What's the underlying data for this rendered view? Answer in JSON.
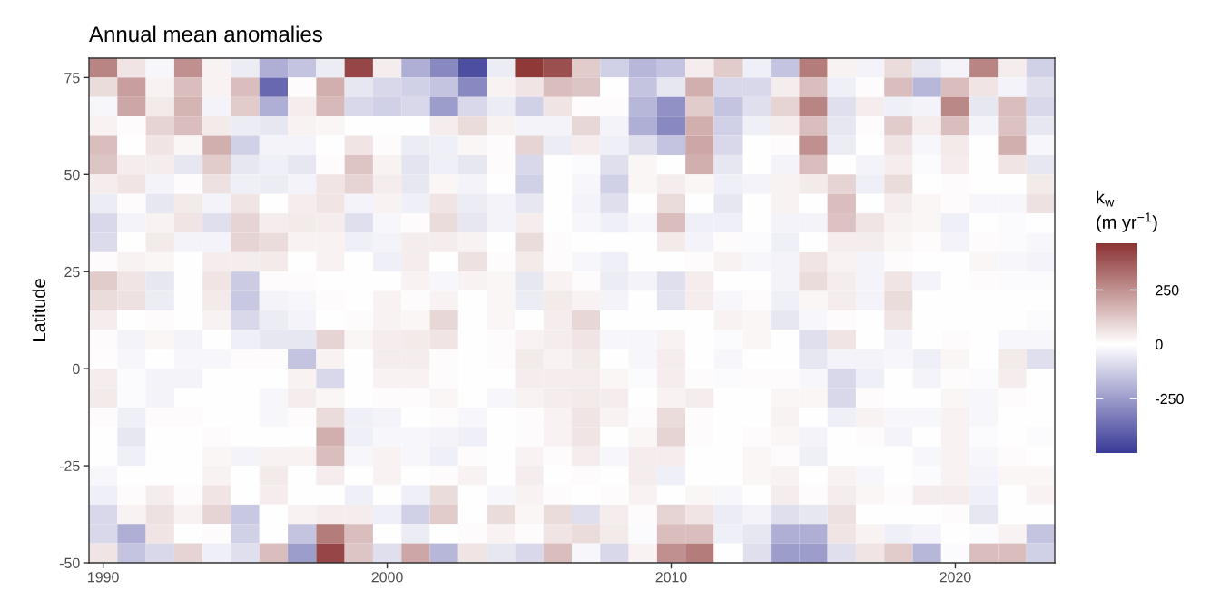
{
  "chart_data": {
    "type": "heatmap",
    "title": "Annual mean anomalies",
    "ylabel": "Latitude",
    "clabel": "k$_{w}$\n(m yr$^{−1}$)",
    "x": [
      1990,
      1991,
      1992,
      1993,
      1994,
      1995,
      1996,
      1997,
      1998,
      1999,
      2000,
      2001,
      2002,
      2003,
      2004,
      2005,
      2006,
      2007,
      2008,
      2009,
      2010,
      2011,
      2012,
      2013,
      2014,
      2015,
      2016,
      2017,
      2018,
      2019,
      2020,
      2021,
      2022,
      2023
    ],
    "y": [
      77.5,
      72.5,
      67.5,
      62.5,
      57.5,
      52.5,
      47.5,
      42.5,
      37.5,
      32.5,
      27.5,
      22.5,
      17.5,
      12.5,
      7.5,
      2.5,
      -2.5,
      -7.5,
      -12.5,
      -17.5,
      -22.5,
      -27.5,
      -32.5,
      -37.5,
      -42.5,
      -47.5
    ],
    "xlim": [
      1989.5,
      2023.5
    ],
    "xticks": [
      1990,
      2000,
      2010,
      2020
    ],
    "ylim": [
      -50,
      80
    ],
    "yticks": [
      -50,
      -25,
      0,
      25,
      50,
      75
    ],
    "clim": [
      -500,
      465
    ],
    "cticks": [
      -250,
      0,
      250
    ],
    "colors": [
      "#3a3a98",
      "#ffffff",
      "#832424"
    ],
    "cells": [
      [
        280,
        60,
        -20,
        250,
        30,
        -50,
        -200,
        -150,
        -50,
        420,
        40,
        -200,
        -300,
        -450,
        -50,
        450,
        400,
        120,
        -120,
        -180,
        -150,
        40,
        120,
        -40,
        -150,
        300,
        30,
        -30,
        80,
        -60,
        -30,
        280,
        40,
        -120
      ],
      [
        80,
        220,
        30,
        150,
        30,
        150,
        -380,
        10,
        180,
        -60,
        -100,
        -120,
        -150,
        -300,
        30,
        60,
        150,
        130,
        0,
        -150,
        -60,
        180,
        -100,
        -100,
        40,
        150,
        -40,
        10,
        150,
        -180,
        150,
        60,
        -30,
        -80
      ],
      [
        -20,
        200,
        50,
        170,
        -30,
        120,
        -200,
        40,
        160,
        -100,
        -120,
        -100,
        -250,
        -100,
        -50,
        -120,
        60,
        10,
        10,
        -180,
        -280,
        120,
        -150,
        -80,
        100,
        280,
        -80,
        40,
        -40,
        -30,
        270,
        -60,
        150,
        -100
      ],
      [
        30,
        10,
        100,
        150,
        50,
        -50,
        -60,
        30,
        20,
        0,
        0,
        0,
        40,
        80,
        30,
        -30,
        -30,
        90,
        -30,
        -200,
        -300,
        180,
        -120,
        -40,
        40,
        150,
        -60,
        10,
        120,
        40,
        150,
        -30,
        140,
        -60
      ],
      [
        150,
        0,
        60,
        20,
        180,
        -120,
        -30,
        -30,
        0,
        60,
        10,
        -50,
        -40,
        20,
        10,
        100,
        -50,
        40,
        -40,
        -80,
        -150,
        200,
        -100,
        0,
        10,
        250,
        -50,
        0,
        60,
        -20,
        50,
        0,
        180,
        -20
      ],
      [
        130,
        40,
        40,
        -60,
        120,
        -60,
        -40,
        -60,
        10,
        130,
        30,
        -70,
        -40,
        -60,
        10,
        -100,
        0,
        -10,
        -80,
        20,
        0,
        180,
        -60,
        0,
        -30,
        150,
        0,
        -30,
        40,
        -10,
        40,
        0,
        60,
        -60
      ],
      [
        40,
        60,
        -30,
        10,
        70,
        -40,
        -50,
        -30,
        60,
        100,
        40,
        -60,
        20,
        -30,
        0,
        -120,
        0,
        -20,
        -120,
        20,
        40,
        20,
        -40,
        -30,
        30,
        50,
        100,
        -40,
        80,
        0,
        10,
        0,
        0,
        50
      ],
      [
        -50,
        10,
        -60,
        50,
        -30,
        60,
        0,
        40,
        60,
        -30,
        30,
        -40,
        60,
        -50,
        -30,
        -60,
        0,
        -30,
        -80,
        0,
        80,
        0,
        -60,
        0,
        30,
        0,
        150,
        0,
        40,
        20,
        10,
        -20,
        -20,
        70
      ],
      [
        -100,
        -30,
        30,
        60,
        -80,
        100,
        40,
        50,
        40,
        -80,
        -20,
        10,
        80,
        -60,
        -30,
        40,
        0,
        -20,
        -40,
        -20,
        150,
        -40,
        -40,
        0,
        -30,
        -30,
        140,
        60,
        30,
        20,
        -40,
        0,
        -10,
        0
      ],
      [
        -90,
        0,
        50,
        -30,
        -30,
        100,
        80,
        30,
        30,
        -40,
        -30,
        40,
        40,
        30,
        0,
        80,
        10,
        0,
        0,
        0,
        50,
        -30,
        10,
        -10,
        -40,
        0,
        40,
        40,
        20,
        10,
        -30,
        10,
        -10,
        -20
      ],
      [
        10,
        30,
        20,
        0,
        40,
        40,
        50,
        0,
        30,
        0,
        -40,
        40,
        0,
        70,
        10,
        50,
        10,
        -20,
        -40,
        0,
        0,
        10,
        30,
        -20,
        -30,
        60,
        30,
        -30,
        10,
        0,
        0,
        20,
        -20,
        -30
      ],
      [
        120,
        60,
        -60,
        0,
        60,
        -130,
        10,
        10,
        0,
        0,
        0,
        30,
        -20,
        30,
        20,
        -60,
        30,
        10,
        -50,
        -30,
        -80,
        40,
        0,
        0,
        -30,
        80,
        40,
        -30,
        60,
        -30,
        0,
        10,
        -10,
        -10
      ],
      [
        80,
        70,
        -50,
        0,
        50,
        -140,
        -30,
        -20,
        10,
        0,
        30,
        10,
        30,
        0,
        20,
        -50,
        50,
        30,
        -30,
        0,
        -70,
        40,
        -20,
        10,
        -40,
        20,
        40,
        -30,
        80,
        0,
        0,
        0,
        0,
        0
      ],
      [
        40,
        0,
        10,
        0,
        30,
        -100,
        -50,
        -30,
        0,
        10,
        30,
        20,
        90,
        0,
        20,
        0,
        40,
        90,
        0,
        0,
        0,
        0,
        30,
        20,
        -60,
        -20,
        10,
        0,
        60,
        0,
        0,
        0,
        0,
        -10
      ],
      [
        10,
        -30,
        20,
        -30,
        0,
        -40,
        -60,
        -60,
        100,
        20,
        40,
        50,
        60,
        0,
        10,
        30,
        40,
        60,
        -20,
        -20,
        30,
        0,
        -10,
        20,
        0,
        -80,
        60,
        0,
        -30,
        0,
        10,
        0,
        -20,
        -20
      ],
      [
        5,
        -20,
        0,
        -20,
        -20,
        10,
        10,
        -150,
        30,
        0,
        40,
        40,
        10,
        0,
        10,
        50,
        30,
        50,
        0,
        -20,
        40,
        0,
        -20,
        0,
        0,
        -60,
        -30,
        -30,
        -20,
        -40,
        20,
        0,
        50,
        -80
      ],
      [
        40,
        -10,
        -30,
        -30,
        0,
        0,
        0,
        30,
        -100,
        0,
        30,
        30,
        10,
        0,
        0,
        40,
        40,
        40,
        20,
        -10,
        40,
        10,
        -10,
        10,
        10,
        -20,
        -100,
        -40,
        0,
        -30,
        10,
        -10,
        40,
        0
      ],
      [
        50,
        -10,
        -30,
        0,
        0,
        0,
        -20,
        40,
        20,
        0,
        10,
        10,
        20,
        0,
        -20,
        30,
        40,
        50,
        40,
        0,
        30,
        40,
        0,
        0,
        20,
        20,
        -100,
        10,
        0,
        0,
        20,
        -20,
        10,
        0
      ],
      [
        10,
        -40,
        10,
        10,
        0,
        0,
        -20,
        10,
        80,
        -40,
        -30,
        0,
        10,
        -20,
        0,
        10,
        30,
        60,
        30,
        10,
        80,
        10,
        0,
        0,
        30,
        0,
        -40,
        30,
        -20,
        -20,
        30,
        -20,
        0,
        0
      ],
      [
        0,
        -60,
        0,
        0,
        10,
        0,
        0,
        0,
        180,
        -40,
        -20,
        -20,
        -30,
        -40,
        0,
        10,
        30,
        60,
        0,
        20,
        100,
        10,
        0,
        10,
        20,
        -30,
        0,
        10,
        -30,
        0,
        30,
        -10,
        0,
        -10
      ],
      [
        0,
        -40,
        0,
        0,
        20,
        -30,
        30,
        30,
        150,
        -20,
        30,
        -20,
        -40,
        10,
        0,
        30,
        10,
        40,
        -20,
        40,
        40,
        0,
        0,
        20,
        10,
        -40,
        0,
        0,
        0,
        -20,
        30,
        -20,
        10,
        0
      ],
      [
        -20,
        0,
        0,
        0,
        30,
        0,
        50,
        0,
        40,
        0,
        30,
        0,
        10,
        30,
        0,
        40,
        0,
        10,
        0,
        40,
        -40,
        0,
        0,
        20,
        30,
        0,
        30,
        -20,
        0,
        -10,
        30,
        -30,
        20,
        20
      ],
      [
        -40,
        10,
        40,
        10,
        60,
        0,
        40,
        0,
        0,
        -40,
        0,
        -40,
        80,
        0,
        -20,
        30,
        10,
        0,
        10,
        30,
        0,
        20,
        -20,
        0,
        40,
        10,
        40,
        20,
        10,
        40,
        40,
        -40,
        0,
        30
      ],
      [
        -100,
        30,
        70,
        30,
        100,
        -140,
        0,
        30,
        40,
        40,
        -40,
        -120,
        120,
        0,
        80,
        20,
        80,
        -80,
        40,
        10,
        100,
        60,
        -50,
        -30,
        -80,
        -60,
        70,
        0,
        0,
        0,
        10,
        -60,
        0,
        0
      ],
      [
        -100,
        -200,
        60,
        0,
        10,
        -120,
        0,
        -150,
        300,
        150,
        0,
        -50,
        0,
        10,
        30,
        10,
        60,
        80,
        50,
        -10,
        150,
        150,
        -40,
        -60,
        -200,
        -200,
        60,
        30,
        -40,
        -30,
        0,
        -10,
        30,
        -150
      ],
      [
        60,
        -150,
        -100,
        100,
        -40,
        -80,
        150,
        -250,
        420,
        130,
        -80,
        200,
        -180,
        60,
        -60,
        -100,
        150,
        -20,
        -100,
        30,
        250,
        300,
        0,
        -80,
        -250,
        -250,
        -80,
        60,
        120,
        -180,
        -10,
        150,
        150,
        -120
      ]
    ]
  }
}
